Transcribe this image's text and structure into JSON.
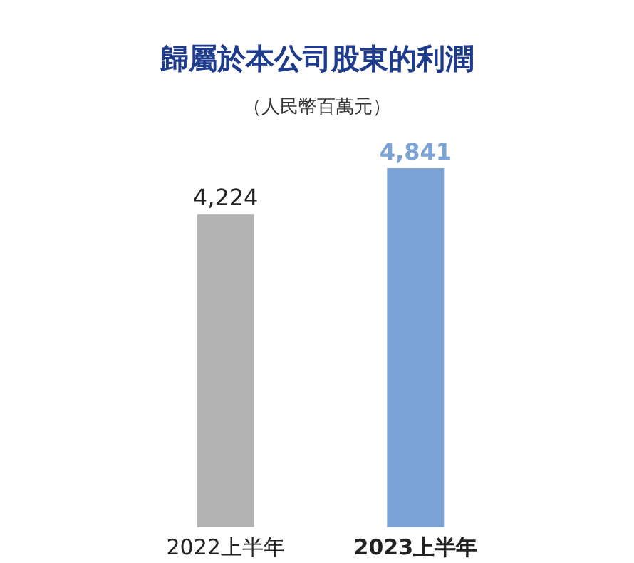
{
  "chart_data": {
    "type": "bar",
    "title": "歸屬於本公司股東的利潤",
    "subtitle": "（人民幣百萬元）",
    "categories": [
      "2022上半年",
      "2023上半年"
    ],
    "values": [
      4224,
      4841
    ],
    "colors": [
      "#b3b3b3",
      "#7ba3d5"
    ],
    "value_labels": [
      "4,224",
      "4,841"
    ]
  }
}
